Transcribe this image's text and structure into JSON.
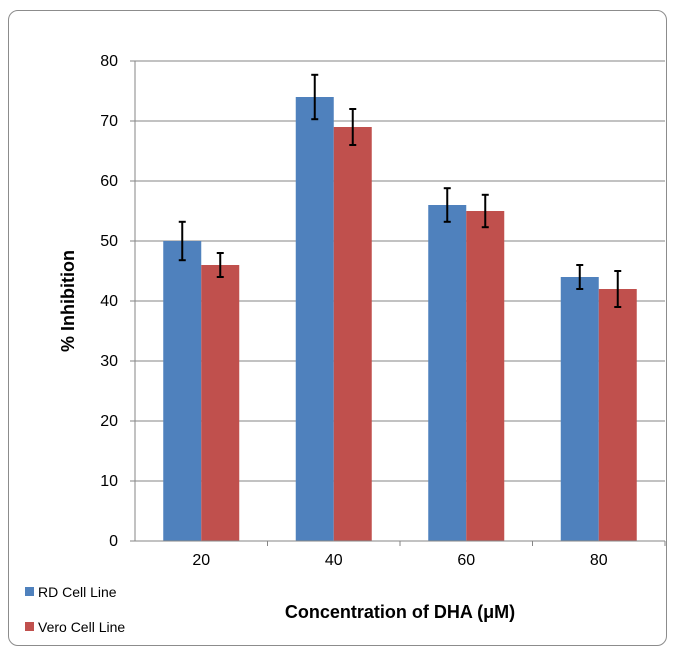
{
  "chart_data": {
    "type": "bar",
    "xlabel": "Concentration of DHA (μM)",
    "ylabel": "% Inhibition",
    "categories": [
      "20",
      "40",
      "60",
      "80"
    ],
    "ylim": [
      0,
      80
    ],
    "yticks": [
      0,
      10,
      20,
      30,
      40,
      50,
      60,
      70,
      80
    ],
    "grid": true,
    "legend_position": "bottom-left",
    "series": [
      {
        "name": "RD Cell Line",
        "color": "#4f81bd",
        "values": [
          50,
          74,
          56,
          44
        ],
        "errors": [
          3.2,
          3.7,
          2.8,
          2.0
        ]
      },
      {
        "name": "Vero Cell Line",
        "color": "#c0504d",
        "values": [
          46,
          69,
          55,
          42
        ],
        "errors": [
          2.0,
          3.0,
          2.7,
          3.0
        ]
      }
    ]
  }
}
